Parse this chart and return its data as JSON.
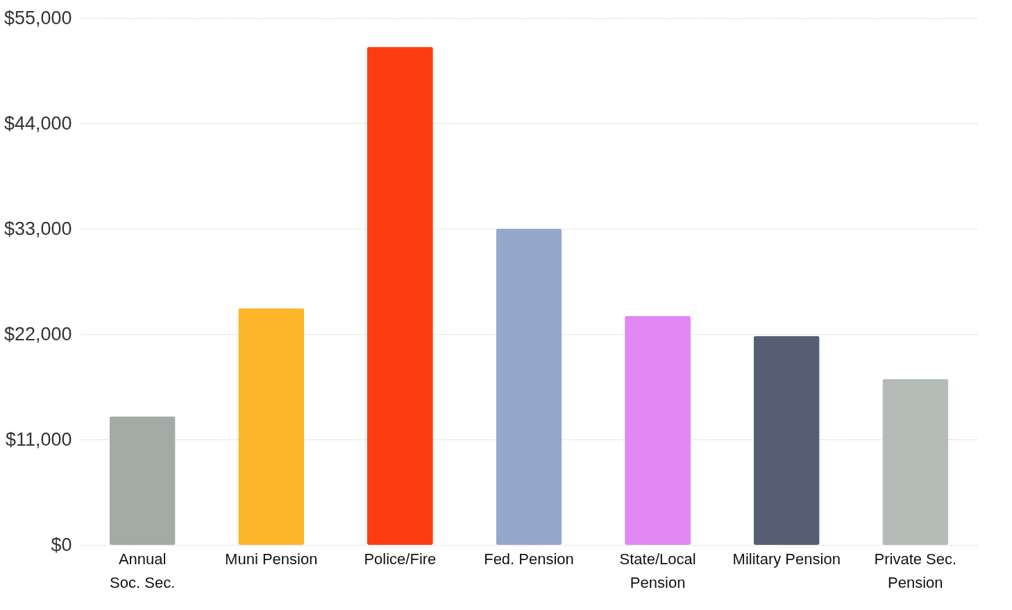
{
  "chart_data": {
    "type": "bar",
    "categories": [
      "Annual\nSoc. Sec.",
      "Muni Pension",
      "Police/Fire",
      "Fed. Pension",
      "State/Local\nPension",
      "Military Pension",
      "Private Sec.\nPension"
    ],
    "values": [
      13400,
      24700,
      52000,
      33000,
      23900,
      21800,
      17300
    ],
    "colors": [
      "#a4aaa6",
      "#fdb52a",
      "#fc3d12",
      "#95a8cc",
      "#e188f5",
      "#565e74",
      "#b5bbb7"
    ],
    "ylim": [
      0,
      55000
    ],
    "yticks": [
      {
        "value": 0,
        "label": "$0"
      },
      {
        "value": 11000,
        "label": "$11,000"
      },
      {
        "value": 22000,
        "label": "$22,000"
      },
      {
        "value": 33000,
        "label": "$33,000"
      },
      {
        "value": 44000,
        "label": "$44,000"
      },
      {
        "value": 55000,
        "label": "$55,000"
      }
    ],
    "grid": "y",
    "legend": false
  }
}
